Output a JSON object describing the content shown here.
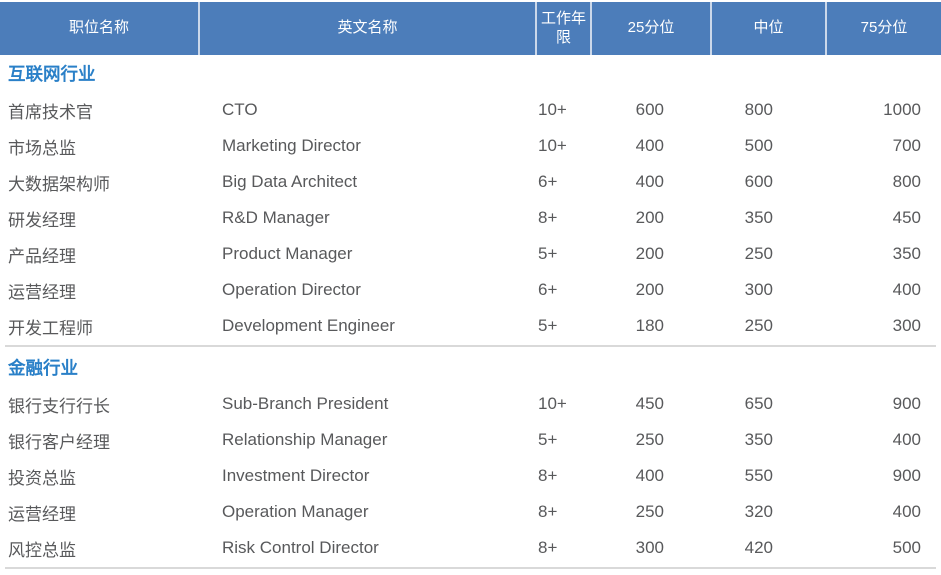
{
  "header": {
    "columns": [
      "职位名称",
      "英文名称",
      "工作年限",
      "25分位",
      "中位",
      "75分位"
    ]
  },
  "sections": [
    {
      "title": "互联网行业",
      "rows": [
        [
          "首席技术官",
          "CTO",
          "10+",
          "600",
          "800",
          "1000"
        ],
        [
          "市场总监",
          "Marketing Director",
          "10+",
          "400",
          "500",
          "700"
        ],
        [
          "大数据架构师",
          "Big Data Architect",
          "6+",
          "400",
          "600",
          "800"
        ],
        [
          "研发经理",
          "R&D Manager",
          "8+",
          "200",
          "350",
          "450"
        ],
        [
          "产品经理",
          "Product Manager",
          "5+",
          "200",
          "250",
          "350"
        ],
        [
          "运营经理",
          "Operation Director",
          "6+",
          "200",
          "300",
          "400"
        ],
        [
          "开发工程师",
          "Development Engineer",
          "5+",
          "180",
          "250",
          "300"
        ]
      ]
    },
    {
      "title": "金融行业",
      "rows": [
        [
          "银行支行行长",
          "Sub-Branch President",
          "10+",
          "450",
          "650",
          "900"
        ],
        [
          "银行客户经理",
          "Relationship Manager",
          "5+",
          "250",
          "350",
          "400"
        ],
        [
          "投资总监",
          "Investment Director",
          "8+",
          "400",
          "550",
          "900"
        ],
        [
          "运营经理",
          "Operation Manager",
          "8+",
          "250",
          "320",
          "400"
        ],
        [
          "风控总监",
          "Risk Control Director",
          "8+",
          "300",
          "420",
          "500"
        ]
      ]
    }
  ],
  "colors": {
    "header_bg": "#4C7DBA",
    "header_text": "#FFFFFF",
    "header_divider": "#CBD8EA",
    "section_title": "#2A80C8",
    "body_text": "#58595B",
    "rule": "#D9D9D9"
  }
}
